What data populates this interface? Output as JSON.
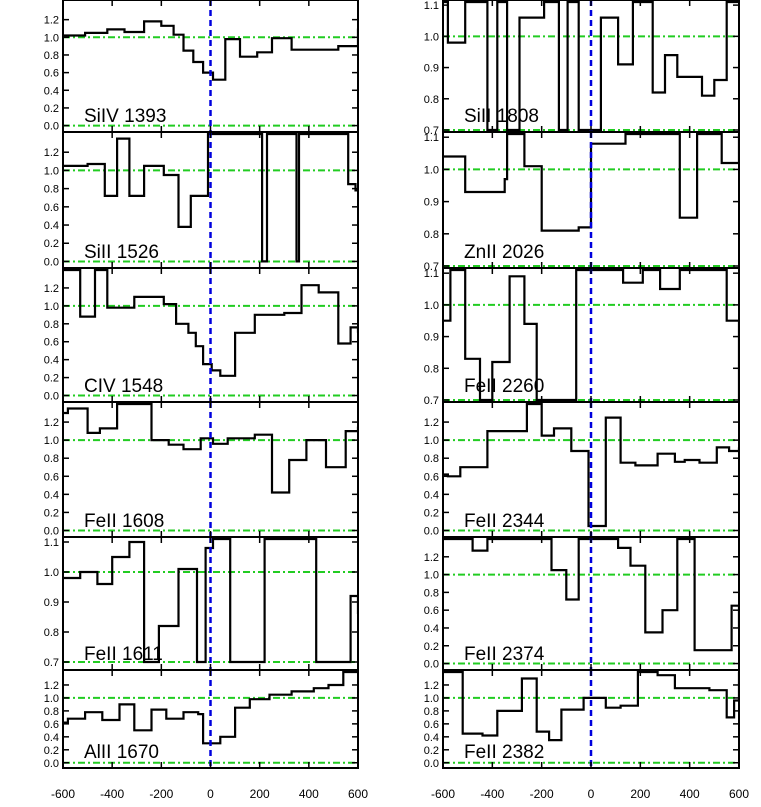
{
  "chart_data": {
    "type": "line",
    "layout_description": "Two columns of six stacked velocity-profile panels; shared velocity axis",
    "xlim": [
      -600,
      600
    ],
    "x_ticks": [
      "-600",
      "-400",
      "-200",
      "0",
      "200",
      "400",
      "600"
    ],
    "reference_lines": {
      "zero_velocity_color": "#0000dd",
      "continuum_color": "#22cc22",
      "step_color": "#000000"
    },
    "panels": [
      {
        "label": "SiIV 1393",
        "col": 0,
        "row": 0,
        "ylim": [
          -0.05,
          1.4
        ],
        "yticks": [
          "0.0",
          "0.2",
          "0.4",
          "0.6",
          "0.8",
          "1.0",
          "1.2"
        ],
        "ytick_values": [
          0.0,
          0.2,
          0.4,
          0.6,
          0.8,
          1.0,
          1.2
        ],
        "hlines": [
          0.0,
          1.0
        ],
        "x": [
          -600,
          -510,
          -420,
          -350,
          -270,
          -200,
          -150,
          -110,
          -70,
          -30,
          10,
          60,
          120,
          190,
          250,
          330,
          440,
          520,
          600
        ],
        "y": [
          1.02,
          1.05,
          1.09,
          1.06,
          1.18,
          1.13,
          1.03,
          0.85,
          0.72,
          0.6,
          0.52,
          0.98,
          0.78,
          0.83,
          0.99,
          0.86,
          0.86,
          0.9,
          1.1
        ]
      },
      {
        "label": "SiII 1526",
        "col": 0,
        "row": 1,
        "ylim": [
          -0.05,
          1.4
        ],
        "yticks": [
          "0.0",
          "0.2",
          "0.4",
          "0.6",
          "0.8",
          "1.0",
          "1.2"
        ],
        "ytick_values": [
          0.0,
          0.2,
          0.4,
          0.6,
          0.8,
          1.0,
          1.2
        ],
        "hlines": [
          0.0,
          1.0
        ],
        "x": [
          -600,
          -500,
          -430,
          -380,
          -330,
          -270,
          -190,
          -130,
          -80,
          -10,
          210,
          230,
          350,
          360,
          560,
          590,
          600
        ],
        "y": [
          1.05,
          1.07,
          0.72,
          1.35,
          0.72,
          1.05,
          0.95,
          0.38,
          0.72,
          1.4,
          0.0,
          1.4,
          0.0,
          1.4,
          0.85,
          0.78,
          0.78
        ]
      },
      {
        "label": "CIV 1548",
        "col": 0,
        "row": 2,
        "ylim": [
          -0.05,
          1.4
        ],
        "yticks": [
          "0.0",
          "0.2",
          "0.4",
          "0.6",
          "0.8",
          "1.0",
          "1.2"
        ],
        "ytick_values": [
          0.0,
          0.2,
          0.4,
          0.6,
          0.8,
          1.0,
          1.2
        ],
        "hlines": [
          0.0,
          1.0
        ],
        "x": [
          -600,
          -530,
          -470,
          -420,
          -310,
          -190,
          -140,
          -90,
          -60,
          -30,
          5,
          40,
          100,
          180,
          300,
          370,
          440,
          520,
          570,
          600
        ],
        "y": [
          1.4,
          0.88,
          1.4,
          0.98,
          1.1,
          1.02,
          0.8,
          0.7,
          0.55,
          0.35,
          0.28,
          0.22,
          0.7,
          0.9,
          0.92,
          1.23,
          1.15,
          0.58,
          0.76,
          0.7
        ]
      },
      {
        "label": "FeII 1608",
        "col": 0,
        "row": 3,
        "ylim": [
          -0.05,
          1.4
        ],
        "yticks": [
          "0.0",
          "0.2",
          "0.4",
          "0.6",
          "0.8",
          "1.0",
          "1.2"
        ],
        "ytick_values": [
          0.0,
          0.2,
          0.4,
          0.6,
          0.8,
          1.0,
          1.2
        ],
        "hlines": [
          0.0,
          1.0
        ],
        "x": [
          -600,
          -580,
          -500,
          -450,
          -380,
          -240,
          -170,
          -110,
          -40,
          10,
          70,
          180,
          250,
          320,
          390,
          470,
          550,
          600
        ],
        "y": [
          1.3,
          1.35,
          1.08,
          1.13,
          1.4,
          1.0,
          0.95,
          0.9,
          1.02,
          0.96,
          1.02,
          1.06,
          0.42,
          0.78,
          1.0,
          0.7,
          1.1,
          1.15
        ]
      },
      {
        "label": "FeII 1611",
        "col": 0,
        "row": 4,
        "ylim": [
          0.68,
          1.11
        ],
        "yticks": [
          "0.7",
          "0.8",
          "0.9",
          "1.0",
          "1.1"
        ],
        "ytick_values": [
          0.7,
          0.8,
          0.9,
          1.0,
          1.1
        ],
        "hlines": [
          0.7,
          1.0
        ],
        "x": [
          -600,
          -530,
          -460,
          -400,
          -330,
          -270,
          -210,
          -130,
          -55,
          -20,
          10,
          80,
          220,
          430,
          570,
          600
        ],
        "y": [
          0.98,
          1.0,
          0.96,
          1.05,
          1.1,
          0.7,
          0.82,
          1.01,
          0.7,
          1.08,
          1.11,
          0.7,
          1.11,
          0.7,
          0.92,
          0.86
        ]
      },
      {
        "label": "AlII 1670",
        "col": 0,
        "row": 5,
        "ylim": [
          -0.05,
          1.4
        ],
        "yticks": [
          "0.0",
          "0.2",
          "0.4",
          "0.6",
          "0.8",
          "1.0",
          "1.2"
        ],
        "ytick_values": [
          0.0,
          0.2,
          0.4,
          0.6,
          0.8,
          1.0,
          1.2
        ],
        "hlines": [
          0.0,
          1.0
        ],
        "x": [
          -600,
          -580,
          -510,
          -440,
          -370,
          -310,
          -240,
          -180,
          -110,
          -50,
          -30,
          40,
          100,
          160,
          240,
          330,
          420,
          480,
          540,
          600
        ],
        "y": [
          0.62,
          0.68,
          0.78,
          0.66,
          0.9,
          0.5,
          0.82,
          0.68,
          0.78,
          0.75,
          0.3,
          0.4,
          0.85,
          0.98,
          1.05,
          1.1,
          1.15,
          1.2,
          1.4,
          1.4
        ]
      },
      {
        "label": "SiII 1808",
        "col": 1,
        "row": 0,
        "ylim": [
          0.7,
          1.11
        ],
        "yticks": [
          "0.7",
          "0.8",
          "0.9",
          "1.0",
          "1.1"
        ],
        "ytick_values": [
          0.7,
          0.8,
          0.9,
          1.0,
          1.1
        ],
        "hlines": [
          0.7,
          1.0
        ],
        "x": [
          -600,
          -580,
          -510,
          -420,
          -380,
          -340,
          -290,
          -190,
          -130,
          -95,
          -50,
          40,
          110,
          170,
          250,
          300,
          350,
          450,
          500,
          550,
          600
        ],
        "y": [
          1.11,
          0.98,
          1.11,
          0.7,
          1.11,
          0.7,
          1.06,
          1.11,
          0.7,
          1.11,
          0.7,
          1.06,
          0.91,
          1.11,
          0.82,
          0.94,
          0.87,
          0.81,
          0.86,
          1.11,
          1.11
        ]
      },
      {
        "label": "ZnII 2026",
        "col": 1,
        "row": 1,
        "ylim": [
          0.7,
          1.11
        ],
        "yticks": [
          "0.7",
          "0.8",
          "0.9",
          "1.0",
          "1.1"
        ],
        "ytick_values": [
          0.7,
          0.8,
          0.9,
          1.0,
          1.1
        ],
        "hlines": [
          0.7,
          1.0
        ],
        "x": [
          -600,
          -560,
          -510,
          -400,
          -350,
          -340,
          -270,
          -200,
          -130,
          -50,
          0,
          140,
          200,
          360,
          430,
          530,
          600
        ],
        "y": [
          1.04,
          1.04,
          0.93,
          0.93,
          0.97,
          1.11,
          1.01,
          0.81,
          0.81,
          0.82,
          1.08,
          1.11,
          1.11,
          0.85,
          1.11,
          1.02,
          1.11
        ]
      },
      {
        "label": "FeII 2260",
        "col": 1,
        "row": 2,
        "ylim": [
          0.7,
          1.11
        ],
        "yticks": [
          "0.7",
          "0.8",
          "0.9",
          "1.0",
          "1.1"
        ],
        "ytick_values": [
          0.7,
          0.8,
          0.9,
          1.0,
          1.1
        ],
        "hlines": [
          0.7,
          1.0
        ],
        "x": [
          -600,
          -570,
          -510,
          -450,
          -400,
          -330,
          -270,
          -220,
          -60,
          -40,
          60,
          130,
          210,
          280,
          360,
          480,
          550,
          600
        ],
        "y": [
          0.95,
          1.11,
          0.83,
          0.7,
          0.82,
          1.09,
          0.94,
          0.7,
          1.11,
          1.11,
          1.11,
          1.07,
          1.11,
          1.05,
          1.11,
          1.11,
          0.95,
          0.7
        ]
      },
      {
        "label": "FeII 2344",
        "col": 1,
        "row": 3,
        "ylim": [
          -0.05,
          1.4
        ],
        "yticks": [
          "0.0",
          "0.2",
          "0.4",
          "0.6",
          "0.8",
          "1.0",
          "1.2"
        ],
        "ytick_values": [
          0.0,
          0.2,
          0.4,
          0.6,
          0.8,
          1.0,
          1.2
        ],
        "hlines": [
          0.0,
          1.0
        ],
        "x": [
          -600,
          -580,
          -530,
          -420,
          -260,
          -200,
          -150,
          -80,
          -10,
          60,
          120,
          180,
          270,
          340,
          380,
          440,
          510,
          560,
          600
        ],
        "y": [
          0.62,
          0.6,
          0.7,
          1.1,
          1.4,
          1.05,
          1.13,
          0.88,
          0.05,
          1.25,
          0.75,
          0.72,
          0.85,
          0.76,
          0.78,
          0.75,
          0.92,
          0.88,
          0.92
        ]
      },
      {
        "label": "FeII 2374",
        "col": 1,
        "row": 4,
        "ylim": [
          -0.05,
          1.4
        ],
        "yticks": [
          "0.0",
          "0.2",
          "0.4",
          "0.6",
          "0.8",
          "1.0",
          "1.2"
        ],
        "ytick_values": [
          0.0,
          0.2,
          0.4,
          0.6,
          0.8,
          1.0,
          1.2
        ],
        "hlines": [
          0.0,
          1.0
        ],
        "x": [
          -600,
          -480,
          -420,
          -390,
          -270,
          -200,
          -160,
          -100,
          -50,
          0,
          110,
          160,
          220,
          290,
          350,
          420,
          570,
          600
        ],
        "y": [
          1.4,
          1.27,
          1.4,
          1.4,
          1.4,
          1.4,
          1.05,
          0.72,
          1.4,
          1.4,
          1.3,
          1.1,
          0.35,
          0.6,
          1.4,
          0.15,
          0.65,
          0.4
        ]
      },
      {
        "label": "FeII 2382",
        "col": 1,
        "row": 5,
        "ylim": [
          -0.05,
          1.4
        ],
        "yticks": [
          "0.0",
          "0.2",
          "0.4",
          "0.6",
          "0.8",
          "1.0",
          "1.2"
        ],
        "ytick_values": [
          0.0,
          0.2,
          0.4,
          0.6,
          0.8,
          1.0,
          1.2
        ],
        "hlines": [
          0.0,
          1.0
        ],
        "x": [
          -600,
          -570,
          -520,
          -440,
          -380,
          -280,
          -220,
          -170,
          -120,
          -30,
          60,
          120,
          190,
          270,
          340,
          480,
          550,
          580,
          600
        ],
        "y": [
          1.4,
          1.4,
          0.45,
          0.42,
          0.8,
          1.3,
          0.48,
          0.35,
          0.82,
          1.0,
          0.85,
          0.88,
          1.4,
          1.35,
          1.15,
          1.12,
          0.7,
          0.96,
          1.4
        ]
      }
    ]
  }
}
